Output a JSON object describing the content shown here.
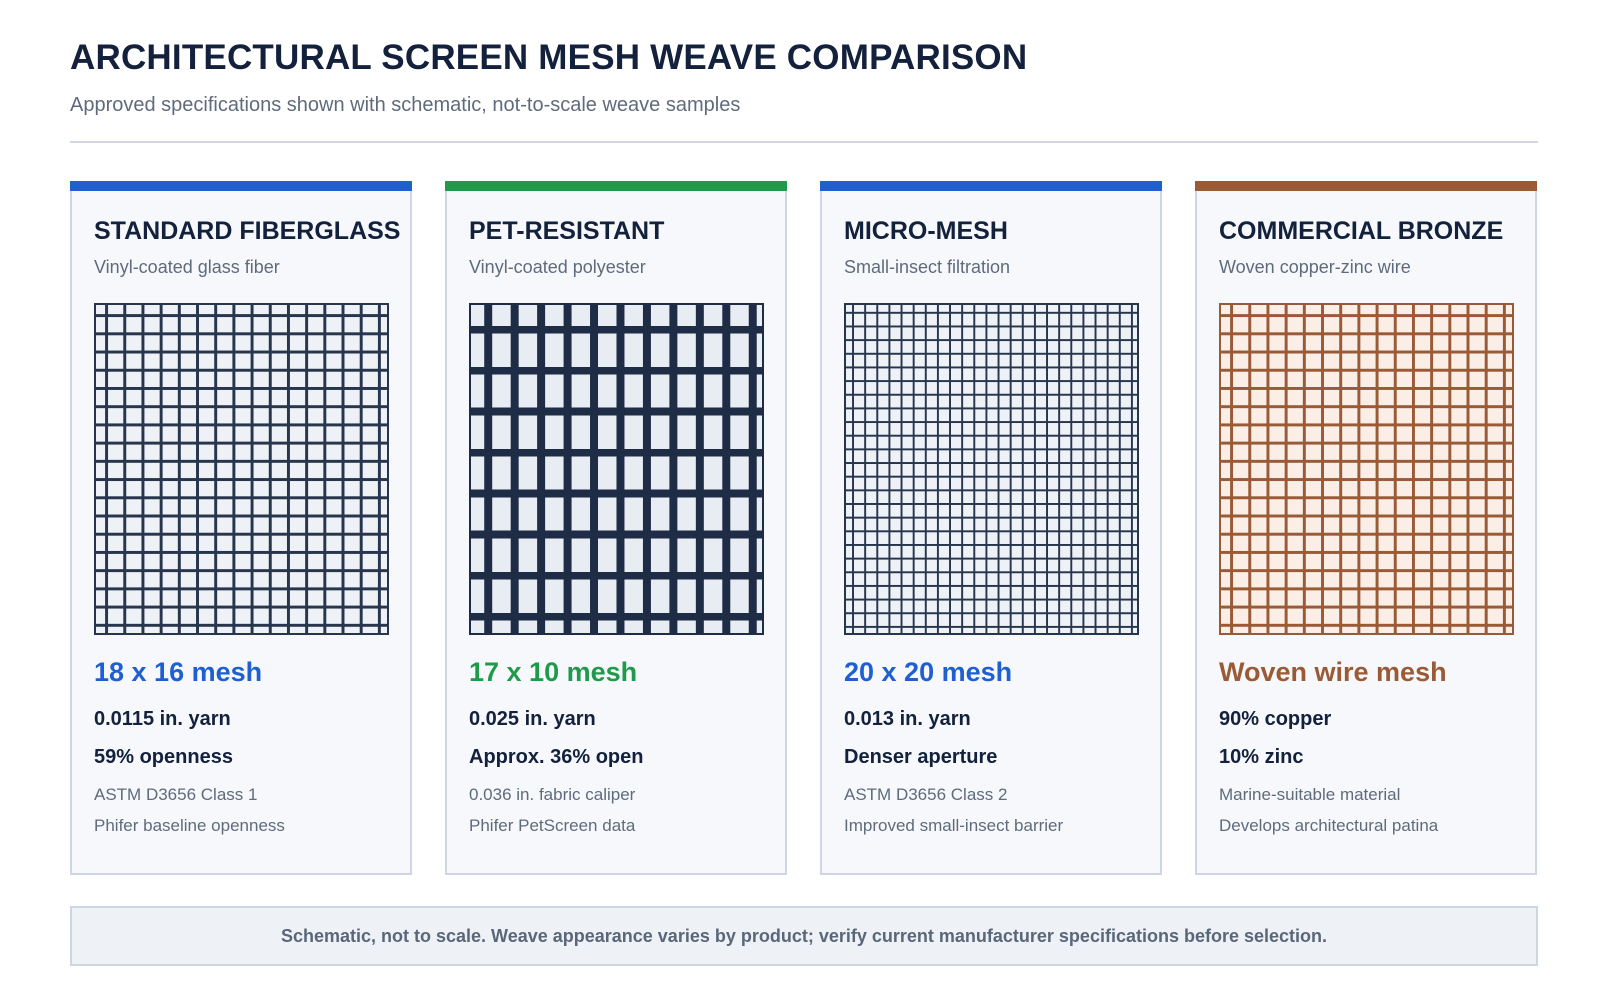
{
  "header": {
    "title": "ARCHITECTURAL SCREEN MESH WEAVE COMPARISON",
    "subtitle": "Approved specifications shown with schematic, not-to-scale weave samples"
  },
  "cards": [
    {
      "title": "STANDARD FIBERGLASS",
      "subtitle": "Vinyl-coated glass fiber",
      "mesh": "18 x 16 mesh",
      "spec1": "0.0115 in. yarn",
      "spec2": "59% openness",
      "note1": "ASTM D3656 Class 1",
      "note2": "Phifer baseline openness",
      "accent_color": "#1f5fd1",
      "label_color": "#1f5fd1",
      "weave": {
        "columns": 16,
        "rows": 18,
        "thread": "#27354d",
        "fill": "#eef2f7",
        "thread_weight": "medium"
      }
    },
    {
      "title": "PET-RESISTANT",
      "subtitle": "Vinyl-coated polyester",
      "mesh": "17 x 10 mesh",
      "spec1": "0.025 in. yarn",
      "spec2": "Approx. 36% open",
      "note1": "0.036 in. fabric caliper",
      "note2": "Phifer PetScreen data",
      "accent_color": "#1f9a4b",
      "label_color": "#1f9a4b",
      "weave": {
        "columns": 11,
        "rows": 8,
        "thread": "#1f2c46",
        "fill": "#e8edf3",
        "thread_weight": "heavy"
      }
    },
    {
      "title": "MICRO-MESH",
      "subtitle": "Small-insect filtration",
      "mesh": "20 x 20 mesh",
      "spec1": "0.013 in. yarn",
      "spec2": "Denser aperture",
      "note1": "ASTM D3656 Class 2",
      "note2": "Improved small-insect barrier",
      "accent_color": "#1f5fd1",
      "label_color": "#1f5fd1",
      "weave": {
        "columns": 24,
        "rows": 24,
        "thread": "#27354d",
        "fill": "#eef2f7",
        "thread_weight": "light"
      }
    },
    {
      "title": "COMMERCIAL BRONZE",
      "subtitle": "Woven copper-zinc wire",
      "mesh": "Woven wire mesh",
      "spec1": "90% copper",
      "spec2": "10% zinc",
      "note1": "Marine-suitable material",
      "note2": "Develops architectural patina",
      "accent_color": "#9a5a36",
      "label_color": "#9a5a36",
      "weave": {
        "columns": 16,
        "rows": 18,
        "thread": "#9a5a36",
        "fill": "#faeee6",
        "thread_weight": "medium"
      }
    }
  ],
  "footer": {
    "text": "Schematic, not to scale. Weave appearance varies by product; verify current manufacturer specifications before selection."
  }
}
